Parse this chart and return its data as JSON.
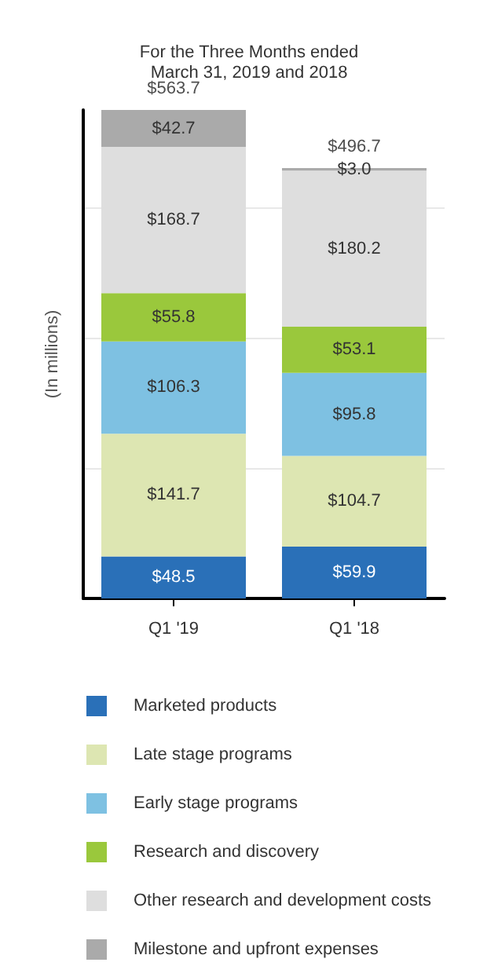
{
  "chart_data": {
    "type": "bar",
    "title": "For the Three Months ended\nMarch 31, 2019 and 2018",
    "ylabel": "(In millions)",
    "categories": [
      "Q1 '19",
      "Q1 '18"
    ],
    "stacked": true,
    "series": [
      {
        "name": "Marketed products",
        "color": "#2a70b8",
        "values": [
          48.5,
          59.9
        ],
        "value_labels": [
          "$48.5",
          "$59.9"
        ]
      },
      {
        "name": "Late stage programs",
        "color": "#dde6b2",
        "values": [
          141.7,
          104.7
        ],
        "value_labels": [
          "$141.7",
          "$104.7"
        ]
      },
      {
        "name": "Early stage programs",
        "color": "#7ec1e2",
        "values": [
          106.3,
          95.8
        ],
        "value_labels": [
          "$106.3",
          "$95.8"
        ]
      },
      {
        "name": "Research and discovery",
        "color": "#9ac83c",
        "values": [
          55.8,
          53.1
        ],
        "value_labels": [
          "$55.8",
          "$53.1"
        ]
      },
      {
        "name": "Other research and development costs",
        "color": "#dedede",
        "values": [
          168.7,
          180.2
        ],
        "value_labels": [
          "$168.7",
          "$180.2"
        ]
      },
      {
        "name": "Milestone and upfront expenses",
        "color": "#aaaaaa",
        "values": [
          42.7,
          3.0
        ],
        "value_labels": [
          "$42.7",
          "$3.0"
        ]
      }
    ],
    "totals": [
      "$563.7",
      "$496.7"
    ],
    "ylim": [
      0,
      563.7
    ],
    "yticks": [
      {
        "value": 0,
        "label": null
      },
      {
        "value": 150,
        "label": null
      },
      {
        "value": 300,
        "label": null
      },
      {
        "value": 450,
        "label": null
      }
    ],
    "grid": "y",
    "legend": "bottom",
    "tick_labels": "x"
  }
}
